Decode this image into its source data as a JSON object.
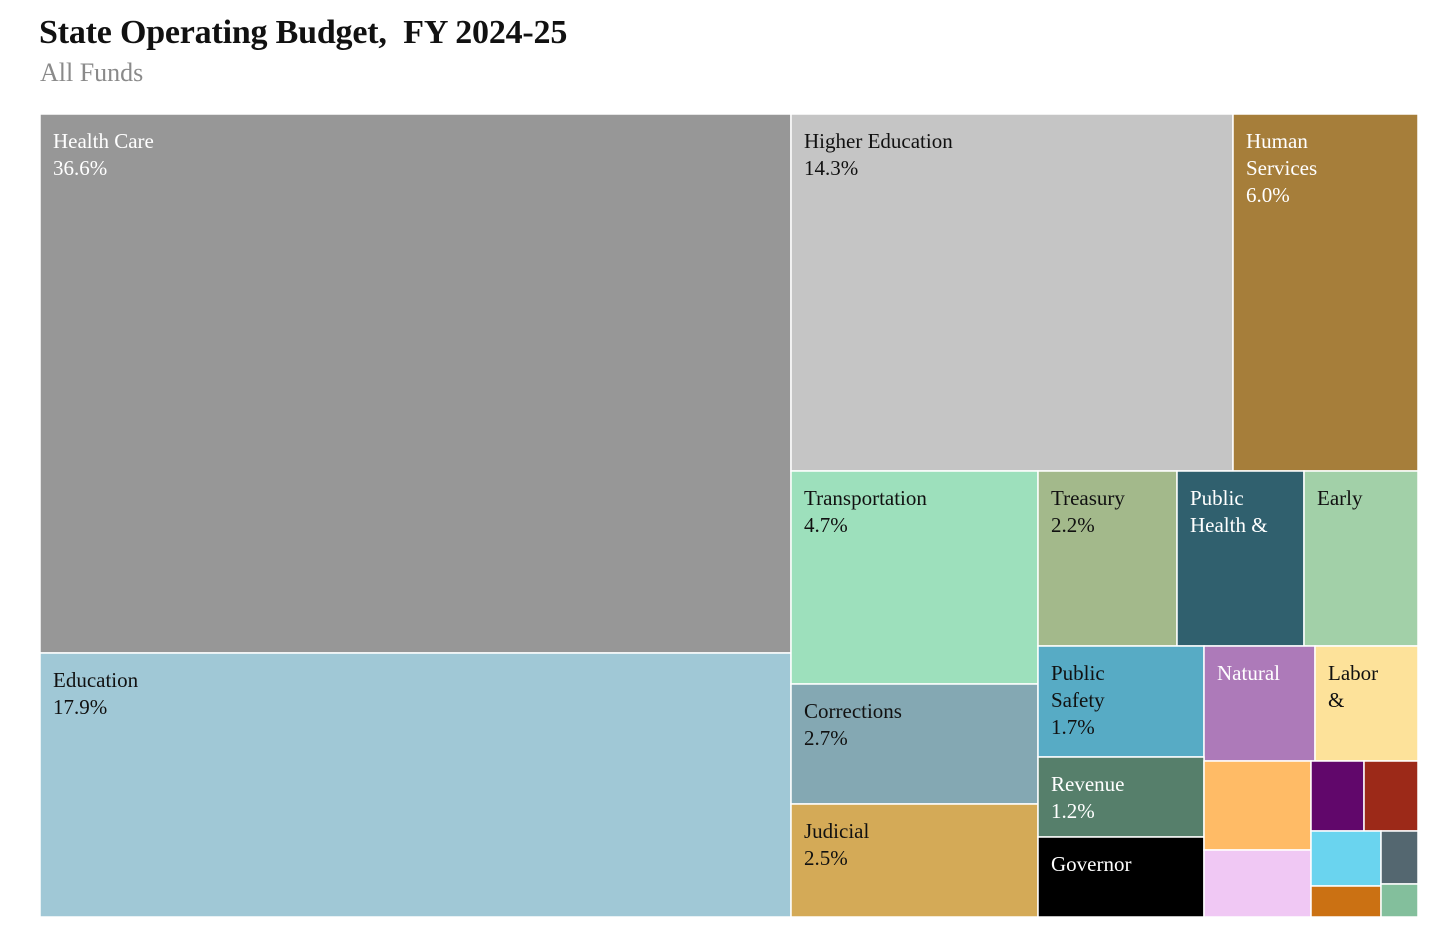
{
  "title": "State Operating Budget,  FY 2024-25",
  "subtitle": "All Funds",
  "chart_data": {
    "type": "treemap",
    "unit": "percent of all funds",
    "items": [
      {
        "name": "Health Care",
        "lines": [
          "Health Care"
        ],
        "value": 36.6,
        "value_label": "36.6%",
        "color": "#979797",
        "text_color": "#ffffff"
      },
      {
        "name": "Education",
        "lines": [
          "Education"
        ],
        "value": 17.9,
        "value_label": "17.9%",
        "color": "#a0c8d6",
        "text_color": "#111111"
      },
      {
        "name": "Higher Education",
        "lines": [
          "Higher Education"
        ],
        "value": 14.3,
        "value_label": "14.3%",
        "color": "#c5c5c5",
        "text_color": "#111111"
      },
      {
        "name": "Human Services",
        "lines": [
          "Human",
          "Services"
        ],
        "value": 6.0,
        "value_label": "6.0%",
        "color": "#a67e3a",
        "text_color": "#ffffff"
      },
      {
        "name": "Transportation",
        "lines": [
          "Transportation"
        ],
        "value": 4.7,
        "value_label": "4.7%",
        "color": "#9de0bc",
        "text_color": "#111111"
      },
      {
        "name": "Corrections",
        "lines": [
          "Corrections"
        ],
        "value": 2.7,
        "value_label": "2.7%",
        "color": "#84a8b3",
        "text_color": "#111111"
      },
      {
        "name": "Judicial",
        "lines": [
          "Judicial"
        ],
        "value": 2.5,
        "value_label": "2.5%",
        "color": "#d4aa57",
        "text_color": "#111111"
      },
      {
        "name": "Treasury",
        "lines": [
          "Treasury"
        ],
        "value": 2.2,
        "value_label": "2.2%",
        "color": "#a3b98b",
        "text_color": "#111111"
      },
      {
        "name": "Public Health &",
        "lines": [
          "Public",
          "Health &"
        ],
        "value": null,
        "value_label": "",
        "color": "#30606e",
        "text_color": "#ffffff"
      },
      {
        "name": "Early",
        "lines": [
          "Early"
        ],
        "value": null,
        "value_label": "",
        "color": "#a2d0a8",
        "text_color": "#111111"
      },
      {
        "name": "Public Safety",
        "lines": [
          "Public",
          "Safety"
        ],
        "value": 1.7,
        "value_label": "1.7%",
        "color": "#57abc5",
        "text_color": "#111111"
      },
      {
        "name": "Natural",
        "lines": [
          "Natural"
        ],
        "value": null,
        "value_label": "",
        "color": "#ad7ab9",
        "text_color": "#ffffff"
      },
      {
        "name": "Labor &",
        "lines": [
          "Labor",
          "&"
        ],
        "value": null,
        "value_label": "",
        "color": "#fde29a",
        "text_color": "#111111"
      },
      {
        "name": "Revenue",
        "lines": [
          "Revenue"
        ],
        "value": 1.2,
        "value_label": "1.2%",
        "color": "#567f6b",
        "text_color": "#ffffff"
      },
      {
        "name": "Governor",
        "lines": [
          "Governor"
        ],
        "value": null,
        "value_label": "",
        "color": "#000000",
        "text_color": "#ffffff"
      },
      {
        "name": "",
        "lines": [],
        "value": null,
        "value_label": "",
        "color": "#ffbb66",
        "text_color": "#111111"
      },
      {
        "name": "",
        "lines": [],
        "value": null,
        "value_label": "",
        "color": "#f0c8f4",
        "text_color": "#111111"
      },
      {
        "name": "",
        "lines": [],
        "value": null,
        "value_label": "",
        "color": "#61076b",
        "text_color": "#ffffff"
      },
      {
        "name": "",
        "lines": [],
        "value": null,
        "value_label": "",
        "color": "#9c2918",
        "text_color": "#ffffff"
      },
      {
        "name": "",
        "lines": [],
        "value": null,
        "value_label": "",
        "color": "#6ad4ef",
        "text_color": "#111111"
      },
      {
        "name": "",
        "lines": [],
        "value": null,
        "value_label": "",
        "color": "#546770",
        "text_color": "#ffffff"
      },
      {
        "name": "",
        "lines": [],
        "value": null,
        "value_label": "",
        "color": "#cb7113",
        "text_color": "#ffffff"
      },
      {
        "name": "",
        "lines": [],
        "value": null,
        "value_label": "",
        "color": "#83bf9c",
        "text_color": "#111111"
      }
    ]
  }
}
